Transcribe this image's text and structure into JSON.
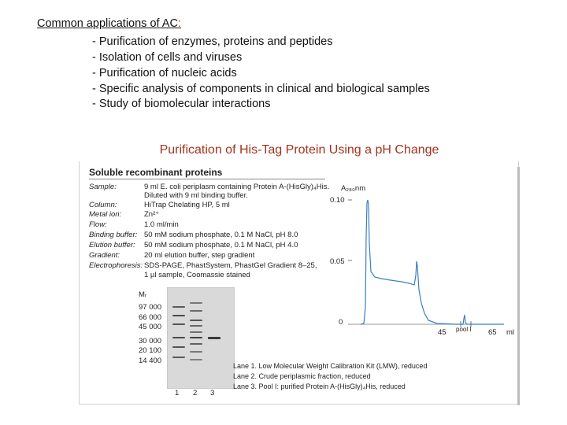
{
  "intro": {
    "heading": "Common applications of AC",
    "heading_colon": ":",
    "applications": [
      "- Purification of enzymes, proteins and peptides",
      "- Isolation of cells and viruses",
      "- Purification of nucleic acids",
      "- Specific analysis of components in clinical and biological samples",
      "- Study of biomolecular interactions"
    ]
  },
  "section_title": "Purification of His-Tag Protein Using a pH Change",
  "figure": {
    "title": "Soluble recombinant proteins",
    "conditions": [
      {
        "label": "Sample:",
        "value": "9 ml E. coli periplasm containing Protein A-(HisGly)₄His."
      },
      {
        "label": "",
        "value": "Diluted with 9 ml binding buffer."
      },
      {
        "label": "Column:",
        "value": "HiTrap Chelating HP, 5 ml"
      },
      {
        "label": "Metal ion:",
        "value": "Zn²⁺"
      },
      {
        "label": "Flow:",
        "value": "1.0 ml/min"
      },
      {
        "label": "Binding buffer:",
        "value": "50 mM sodium phosphate, 0.1 M NaCl, pH 8.0"
      },
      {
        "label": "Elution buffer:",
        "value": "50 mM sodium phosphate, 0.1 M NaCl, pH 4.0"
      },
      {
        "label": "Gradient:",
        "value": "20 ml elution buffer, step gradient"
      },
      {
        "label": "Electrophoresis:",
        "value": "SDS-PAGE, PhastSystem, PhastGel Gradient 8–25,"
      },
      {
        "label": "",
        "value": "1 µl sample, Coomassie stained"
      }
    ],
    "gel": {
      "mw_header": "Mᵣ",
      "mw_markers": [
        "97 000",
        "66 000",
        "45 000",
        "30 000",
        "20 100",
        "14 400"
      ],
      "lane_numbers": [
        "1",
        "2",
        "3"
      ],
      "band_color": "#4a4a4a",
      "background_color": "#d9d9d9"
    },
    "legend": [
      "Lane 1. Low Molecular Weight Calibration Kit (LMW), reduced",
      "Lane 2. Crude periplasmic fraction, reduced",
      "Lane 3. Pool I: purified Protein A-(HisGly)₄His, reduced"
    ],
    "chromatogram": {
      "y_axis_label": "A₂₈₀nm",
      "y_ticks": [
        "0.10",
        "0.05",
        "0"
      ],
      "x_ticks": [
        "45",
        "65"
      ],
      "x_unit": "ml",
      "pool_label": "pool I",
      "trace_color": "#3a7fc1"
    }
  },
  "colors": {
    "section_title": "#a3331d",
    "heading_colon": "#b14a00"
  }
}
